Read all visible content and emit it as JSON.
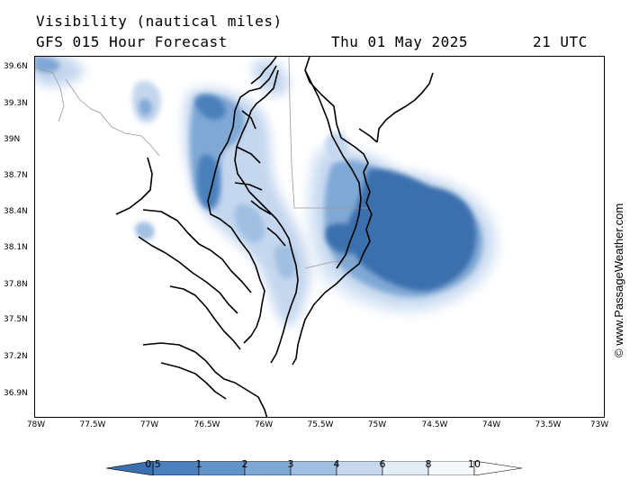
{
  "header": {
    "title": "Visibility (nautical miles)",
    "subtitle": "GFS 015 Hour Forecast",
    "date": "Thu 01 May 2025",
    "time": "21 UTC"
  },
  "credit": "© www.PassageWeather.com",
  "y_axis_labels": [
    "39.6N",
    "39.3N",
    "39N",
    "38.7N",
    "38.4N",
    "38.1N",
    "37.8N",
    "37.5N",
    "37.2N",
    "36.9N"
  ],
  "x_axis_labels": [
    "78W",
    "77.5W",
    "77W",
    "76.5W",
    "76W",
    "75.5W",
    "75W",
    "74.5W",
    "74W",
    "73.5W",
    "73W"
  ],
  "colorbar": {
    "labels": [
      "0.5",
      "1",
      "2",
      "3",
      "4",
      "6",
      "8",
      "10"
    ],
    "colors": [
      "#3a70ad",
      "#4a80bb",
      "#6393c8",
      "#80a8d5",
      "#a0bfe2",
      "#c4d7ee",
      "#e3edf8"
    ]
  },
  "palette": {
    "land_line": "#000000",
    "border": "#999999"
  }
}
